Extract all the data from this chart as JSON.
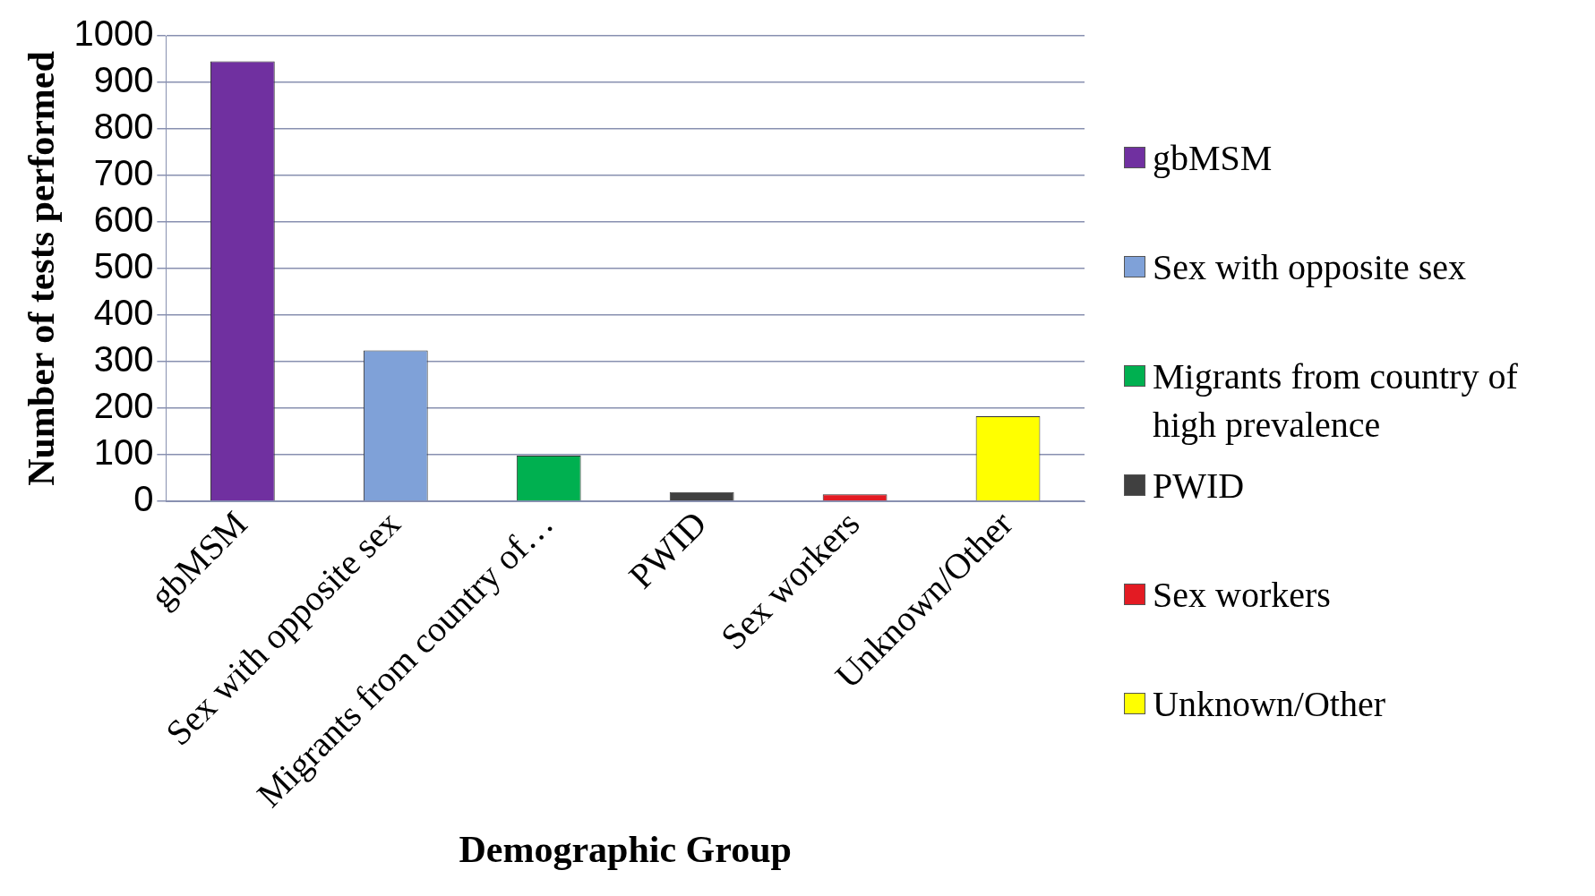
{
  "chart_data": {
    "type": "bar",
    "xlabel": "Demographic Group",
    "ylabel": "Number of tests performed",
    "categories": [
      "gbMSM",
      "Sex with opposite sex",
      "Migrants from country of…",
      "PWID",
      "Sex workers",
      "Unknown/Other"
    ],
    "series": [
      {
        "name": "gbMSM",
        "color": "#7030a0",
        "values": [
          945,
          null,
          null,
          null,
          null,
          null
        ]
      },
      {
        "name": "Sex with opposite sex",
        "color": "#7fa1d8",
        "values": [
          null,
          324,
          null,
          null,
          null,
          null
        ]
      },
      {
        "name": "Migrants from country of high prevalence",
        "color": "#00b050",
        "values": [
          null,
          null,
          98,
          null,
          null,
          null
        ]
      },
      {
        "name": "PWID",
        "color": "#404040",
        "values": [
          null,
          null,
          null,
          20,
          null,
          null
        ]
      },
      {
        "name": "Sex workers",
        "color": "#e31b23",
        "values": [
          null,
          null,
          null,
          null,
          15,
          null
        ]
      },
      {
        "name": "Unknown/Other",
        "color": "#ffff00",
        "values": [
          null,
          null,
          null,
          null,
          null,
          183
        ]
      }
    ],
    "ylim": [
      0,
      1000
    ],
    "yticks": [
      0,
      100,
      200,
      300,
      400,
      500,
      600,
      700,
      800,
      900,
      1000
    ],
    "grid": "y",
    "legend": "right"
  }
}
